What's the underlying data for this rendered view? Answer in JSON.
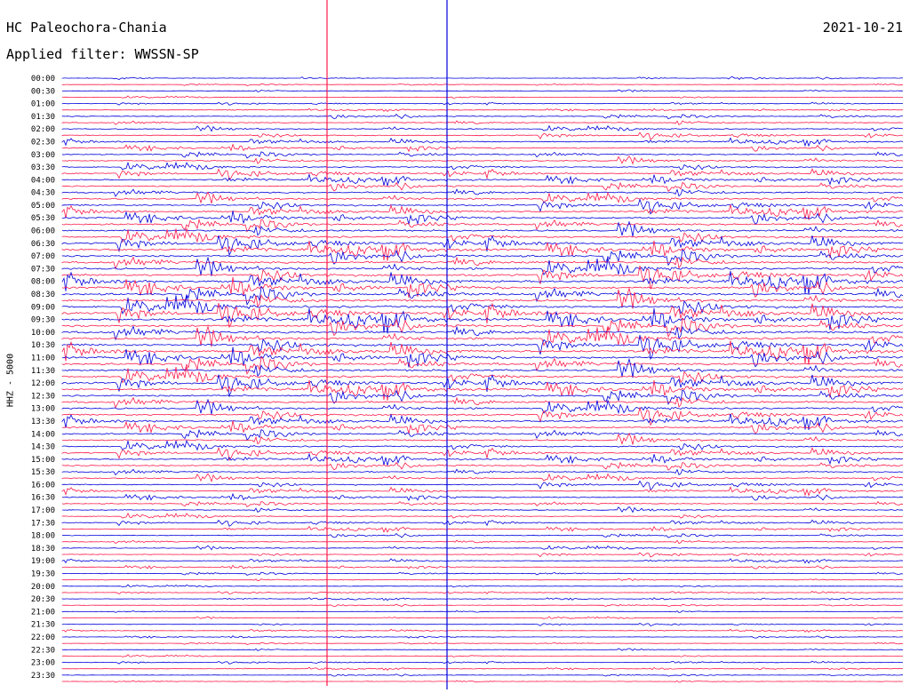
{
  "header": {
    "station": "HC Paleochora-Chania",
    "date": "2021-10-21",
    "filter_label": "Applied filter: WWSSN-SP"
  },
  "chart_data": {
    "type": "line",
    "title": "HC Paleochora-Chania",
    "subtitle": "Applied filter: WWSSN-SP",
    "ylabel": "HHZ - 5000",
    "row_interval_minutes": 15,
    "tick_labels": [
      "00:00",
      "00:30",
      "01:00",
      "01:30",
      "02:00",
      "02:30",
      "03:00",
      "03:30",
      "04:00",
      "04:30",
      "05:00",
      "05:30",
      "06:00",
      "06:30",
      "07:00",
      "07:30",
      "08:00",
      "08:30",
      "09:00",
      "09:30",
      "10:00",
      "10:30",
      "11:00",
      "11:30",
      "12:00",
      "12:30",
      "13:00",
      "13:30",
      "14:00",
      "14:30",
      "15:00",
      "15:30",
      "16:00",
      "16:30",
      "17:00",
      "17:30",
      "18:00",
      "18:30",
      "19:00",
      "19:30",
      "20:00",
      "20:30",
      "21:00",
      "21:30",
      "22:00",
      "22:30",
      "23:00",
      "23:30"
    ],
    "colors": {
      "trace_a": "#0000dd",
      "trace_b": "#ff1a4b"
    },
    "color_cycle": [
      "trace_a",
      "trace_b"
    ],
    "grid": false,
    "legend": "none"
  }
}
